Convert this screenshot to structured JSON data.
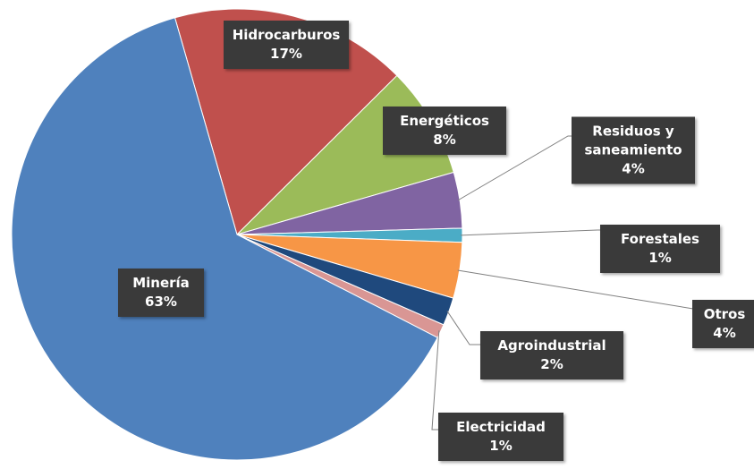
{
  "chart_data": {
    "type": "pie",
    "categories": [
      "Hidrocarburos",
      "Energéticos",
      "Residuos y saneamiento",
      "Forestales",
      "Otros",
      "Agroindustrial",
      "Electricidad",
      "Minería"
    ],
    "values": [
      17,
      8,
      4,
      1,
      4,
      2,
      1,
      63
    ],
    "value_labels": [
      "17%",
      "8%",
      "4%",
      "1%",
      "4%",
      "2%",
      "1%",
      "63%"
    ],
    "colors": [
      "#c0504d",
      "#9bbb59",
      "#8064a2",
      "#4bacc6",
      "#f79646",
      "#1f497d",
      "#d99694",
      "#4f81bd"
    ]
  }
}
